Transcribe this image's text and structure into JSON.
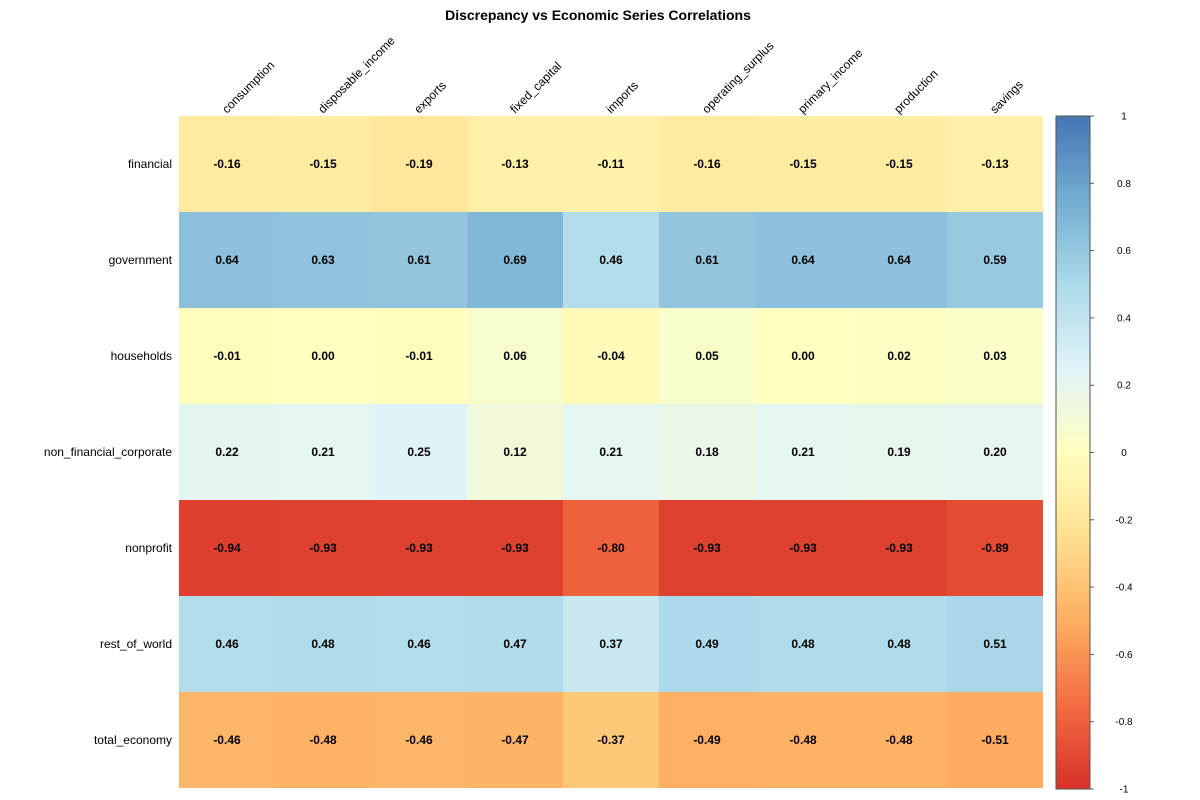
{
  "chart_data": {
    "type": "heatmap",
    "title": "Discrepancy vs Economic Series Correlations",
    "columns": [
      "consumption",
      "disposable_income",
      "exports",
      "fixed_capital",
      "imports",
      "operating_surplus",
      "primary_income",
      "production",
      "savings"
    ],
    "rows": [
      "financial",
      "government",
      "households",
      "non_financial_corporate",
      "nonprofit",
      "rest_of_world",
      "total_economy"
    ],
    "values": [
      [
        -0.16,
        -0.15,
        -0.19,
        -0.13,
        -0.11,
        -0.16,
        -0.15,
        -0.15,
        -0.13
      ],
      [
        0.64,
        0.63,
        0.61,
        0.69,
        0.46,
        0.61,
        0.64,
        0.64,
        0.59
      ],
      [
        -0.01,
        0.0,
        -0.01,
        0.06,
        -0.04,
        0.05,
        0.0,
        0.02,
        0.03
      ],
      [
        0.22,
        0.21,
        0.25,
        0.12,
        0.21,
        0.18,
        0.21,
        0.19,
        0.2
      ],
      [
        -0.94,
        -0.93,
        -0.93,
        -0.93,
        -0.8,
        -0.93,
        -0.93,
        -0.93,
        -0.89
      ],
      [
        0.46,
        0.48,
        0.46,
        0.47,
        0.37,
        0.49,
        0.48,
        0.48,
        0.51
      ],
      [
        -0.46,
        -0.48,
        -0.46,
        -0.47,
        -0.37,
        -0.49,
        -0.48,
        -0.48,
        -0.51
      ]
    ],
    "value_labels": [
      [
        "-0.16",
        "-0.15",
        "-0.19",
        "-0.13",
        "-0.11",
        "-0.16",
        "-0.15",
        "-0.15",
        "-0.13"
      ],
      [
        "0.64",
        "0.63",
        "0.61",
        "0.69",
        "0.46",
        "0.61",
        "0.64",
        "0.64",
        "0.59"
      ],
      [
        "-0.01",
        "0.00",
        "-0.01",
        "0.06",
        "-0.04",
        "0.05",
        "0.00",
        "0.02",
        "0.03"
      ],
      [
        "0.22",
        "0.21",
        "0.25",
        "0.12",
        "0.21",
        "0.18",
        "0.21",
        "0.19",
        "0.20"
      ],
      [
        "-0.94",
        "-0.93",
        "-0.93",
        "-0.93",
        "-0.80",
        "-0.93",
        "-0.93",
        "-0.93",
        "-0.89"
      ],
      [
        "0.46",
        "0.48",
        "0.46",
        "0.47",
        "0.37",
        "0.49",
        "0.48",
        "0.48",
        "0.51"
      ],
      [
        "-0.46",
        "-0.48",
        "-0.46",
        "-0.47",
        "-0.37",
        "-0.49",
        "-0.48",
        "-0.48",
        "-0.51"
      ]
    ],
    "color_range": [
      -1,
      1
    ],
    "color_scale": [
      "#d73027",
      "#f46d43",
      "#fdae61",
      "#fee090",
      "#ffffbf",
      "#e0f3f8",
      "#abd9e9",
      "#74add1",
      "#4575b4"
    ],
    "legend": {
      "placement": "right",
      "ticks": [
        1,
        0.8,
        0.6,
        0.4,
        0.2,
        0,
        -0.2,
        -0.4,
        -0.6,
        -0.8,
        -1
      ],
      "tick_labels": [
        "1",
        "0.8",
        "0.6",
        "0.4",
        "0.2",
        "0",
        "-0.2",
        "-0.4",
        "-0.6",
        "-0.8",
        "-1"
      ]
    }
  }
}
